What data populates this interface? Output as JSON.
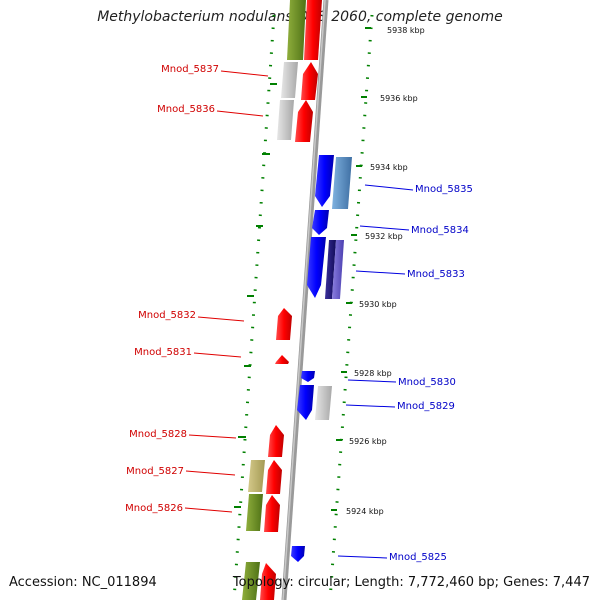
{
  "title": "Methylobacterium nodulans ORS 2060, complete genome",
  "footer": {
    "accession": "Accession: NC_011894",
    "topology": "Topology: circular; Length: 7,772,460 bp; Genes: 7,447"
  },
  "colors": {
    "forward_gene": "#ff0000",
    "reverse_gene": "#0000ff",
    "backbone": "#999999",
    "gc_ticks": "#008000"
  },
  "scale_labels": [
    "5938 kbp",
    "5936 kbp",
    "5934 kbp",
    "5932 kbp",
    "5930 kbp",
    "5928 kbp",
    "5926 kbp",
    "5924 kbp"
  ],
  "forward_labels": [
    "Mnod_5837",
    "Mnod_5836",
    "Mnod_5832",
    "Mnod_5831",
    "Mnod_5828",
    "Mnod_5827",
    "Mnod_5826"
  ],
  "reverse_labels": [
    "Mnod_5835",
    "Mnod_5834",
    "Mnod_5833",
    "Mnod_5830",
    "Mnod_5829",
    "Mnod_5825"
  ]
}
